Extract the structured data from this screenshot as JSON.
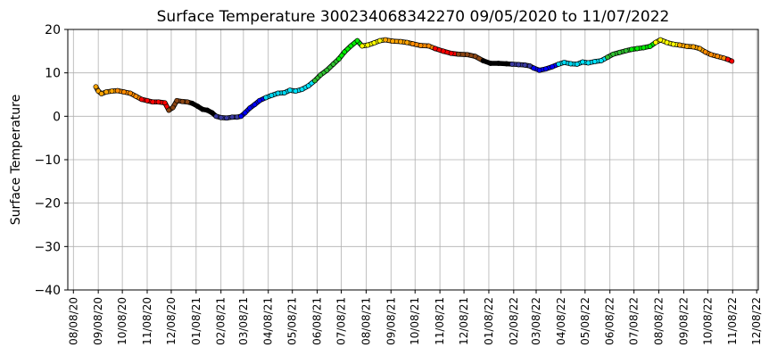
{
  "chart_data": {
    "type": "line",
    "title": "Surface Temperature 300234068342270  09/05/2020 to 11/07/2022",
    "xlabel": "",
    "ylabel": "Surface Temperature",
    "ylim": [
      -40,
      20
    ],
    "yticks": [
      -40,
      -30,
      -20,
      -10,
      0,
      10,
      20
    ],
    "xlim": [
      "2020-08-01",
      "2022-12-10"
    ],
    "xtick_labels": [
      "08/08/20",
      "09/08/20",
      "10/08/20",
      "11/08/20",
      "12/08/20",
      "01/08/21",
      "02/08/21",
      "03/08/21",
      "04/08/21",
      "05/08/21",
      "06/08/21",
      "07/08/21",
      "08/08/21",
      "09/08/21",
      "10/08/21",
      "11/08/21",
      "12/08/21",
      "01/08/22",
      "02/08/22",
      "03/08/22",
      "04/08/22",
      "05/08/22",
      "06/08/22",
      "07/08/22",
      "08/08/22",
      "09/08/22",
      "10/08/22",
      "11/08/22",
      "12/08/22"
    ],
    "xtick_dates": [
      "2020-08-08",
      "2020-09-08",
      "2020-10-08",
      "2020-11-08",
      "2020-12-08",
      "2021-01-08",
      "2021-02-08",
      "2021-03-08",
      "2021-04-08",
      "2021-05-08",
      "2021-06-08",
      "2021-07-08",
      "2021-08-08",
      "2021-09-08",
      "2021-10-08",
      "2021-11-08",
      "2021-12-08",
      "2022-01-08",
      "2022-02-08",
      "2022-03-08",
      "2022-04-08",
      "2022-05-08",
      "2022-06-08",
      "2022-07-08",
      "2022-08-08",
      "2022-09-08",
      "2022-10-08",
      "2022-11-08",
      "2022-12-08"
    ],
    "grid": true,
    "series": [
      {
        "color_by": "month",
        "points": [
          [
            "2020-09-05",
            6.8
          ],
          [
            "2020-09-08",
            5.8
          ],
          [
            "2020-09-12",
            5.2
          ],
          [
            "2020-09-18",
            5.6
          ],
          [
            "2020-09-25",
            5.8
          ],
          [
            "2020-10-02",
            5.9
          ],
          [
            "2020-10-10",
            5.6
          ],
          [
            "2020-10-18",
            5.3
          ],
          [
            "2020-10-25",
            4.6
          ],
          [
            "2020-11-01",
            3.9
          ],
          [
            "2020-11-08",
            3.6
          ],
          [
            "2020-11-15",
            3.3
          ],
          [
            "2020-11-22",
            3.3
          ],
          [
            "2020-11-30",
            3.1
          ],
          [
            "2020-12-05",
            1.4
          ],
          [
            "2020-12-10",
            2.0
          ],
          [
            "2020-12-15",
            3.6
          ],
          [
            "2020-12-22",
            3.4
          ],
          [
            "2020-12-28",
            3.3
          ],
          [
            "2021-01-03",
            3.0
          ],
          [
            "2021-01-10",
            2.3
          ],
          [
            "2021-01-16",
            1.6
          ],
          [
            "2021-01-22",
            1.4
          ],
          [
            "2021-01-28",
            0.8
          ],
          [
            "2021-02-02",
            0.0
          ],
          [
            "2021-02-08",
            -0.3
          ],
          [
            "2021-02-15",
            -0.4
          ],
          [
            "2021-02-22",
            -0.2
          ],
          [
            "2021-02-28",
            -0.2
          ],
          [
            "2021-03-05",
            0.0
          ],
          [
            "2021-03-10",
            0.8
          ],
          [
            "2021-03-16",
            1.9
          ],
          [
            "2021-03-22",
            2.7
          ],
          [
            "2021-03-28",
            3.6
          ],
          [
            "2021-04-05",
            4.3
          ],
          [
            "2021-04-12",
            4.8
          ],
          [
            "2021-04-20",
            5.3
          ],
          [
            "2021-04-28",
            5.4
          ],
          [
            "2021-05-05",
            6.0
          ],
          [
            "2021-05-12",
            5.8
          ],
          [
            "2021-05-20",
            6.2
          ],
          [
            "2021-05-28",
            7.0
          ],
          [
            "2021-06-05",
            8.2
          ],
          [
            "2021-06-12",
            9.5
          ],
          [
            "2021-06-20",
            10.6
          ],
          [
            "2021-06-28",
            12.0
          ],
          [
            "2021-07-05",
            13.2
          ],
          [
            "2021-07-12",
            14.8
          ],
          [
            "2021-07-20",
            16.2
          ],
          [
            "2021-07-28",
            17.4
          ],
          [
            "2021-08-03",
            16.2
          ],
          [
            "2021-08-10",
            16.4
          ],
          [
            "2021-08-18",
            16.9
          ],
          [
            "2021-08-25",
            17.4
          ],
          [
            "2021-09-01",
            17.6
          ],
          [
            "2021-09-10",
            17.3
          ],
          [
            "2021-09-20",
            17.2
          ],
          [
            "2021-09-28",
            17.0
          ],
          [
            "2021-10-05",
            16.7
          ],
          [
            "2021-10-15",
            16.3
          ],
          [
            "2021-10-25",
            16.2
          ],
          [
            "2021-11-02",
            15.6
          ],
          [
            "2021-11-12",
            15.0
          ],
          [
            "2021-11-22",
            14.5
          ],
          [
            "2021-12-01",
            14.3
          ],
          [
            "2021-12-12",
            14.2
          ],
          [
            "2021-12-22",
            13.8
          ],
          [
            "2022-01-01",
            12.8
          ],
          [
            "2022-01-10",
            12.2
          ],
          [
            "2022-01-20",
            12.2
          ],
          [
            "2022-01-30",
            12.1
          ],
          [
            "2022-02-06",
            12.0
          ],
          [
            "2022-02-14",
            11.9
          ],
          [
            "2022-02-22",
            11.8
          ],
          [
            "2022-02-28",
            11.6
          ],
          [
            "2022-03-05",
            11.1
          ],
          [
            "2022-03-12",
            10.6
          ],
          [
            "2022-03-20",
            10.9
          ],
          [
            "2022-03-28",
            11.4
          ],
          [
            "2022-04-05",
            12.0
          ],
          [
            "2022-04-12",
            12.4
          ],
          [
            "2022-04-20",
            12.1
          ],
          [
            "2022-04-28",
            12.0
          ],
          [
            "2022-05-05",
            12.5
          ],
          [
            "2022-05-12",
            12.3
          ],
          [
            "2022-05-20",
            12.6
          ],
          [
            "2022-05-28",
            12.8
          ],
          [
            "2022-06-05",
            13.6
          ],
          [
            "2022-06-12",
            14.3
          ],
          [
            "2022-06-20",
            14.7
          ],
          [
            "2022-06-28",
            15.1
          ],
          [
            "2022-07-05",
            15.4
          ],
          [
            "2022-07-12",
            15.6
          ],
          [
            "2022-07-20",
            15.8
          ],
          [
            "2022-07-28",
            16.1
          ],
          [
            "2022-08-04",
            17.0
          ],
          [
            "2022-08-10",
            17.6
          ],
          [
            "2022-08-18",
            17.0
          ],
          [
            "2022-08-26",
            16.6
          ],
          [
            "2022-09-03",
            16.4
          ],
          [
            "2022-09-12",
            16.1
          ],
          [
            "2022-09-20",
            16.0
          ],
          [
            "2022-09-28",
            15.6
          ],
          [
            "2022-10-05",
            14.8
          ],
          [
            "2022-10-12",
            14.2
          ],
          [
            "2022-10-20",
            13.8
          ],
          [
            "2022-10-28",
            13.4
          ],
          [
            "2022-11-02",
            13.1
          ],
          [
            "2022-11-07",
            12.7
          ]
        ]
      }
    ],
    "month_colors": {
      "1": "#000000",
      "2": "#3a3aa0",
      "3": "#0000ff",
      "4": "#00d8f0",
      "5": "#00e5ff",
      "6": "#30c030",
      "7": "#00ee00",
      "8": "#ffff00",
      "9": "#ffa500",
      "10": "#ff8c00",
      "11": "#ff0000",
      "12": "#8b4513"
    }
  }
}
